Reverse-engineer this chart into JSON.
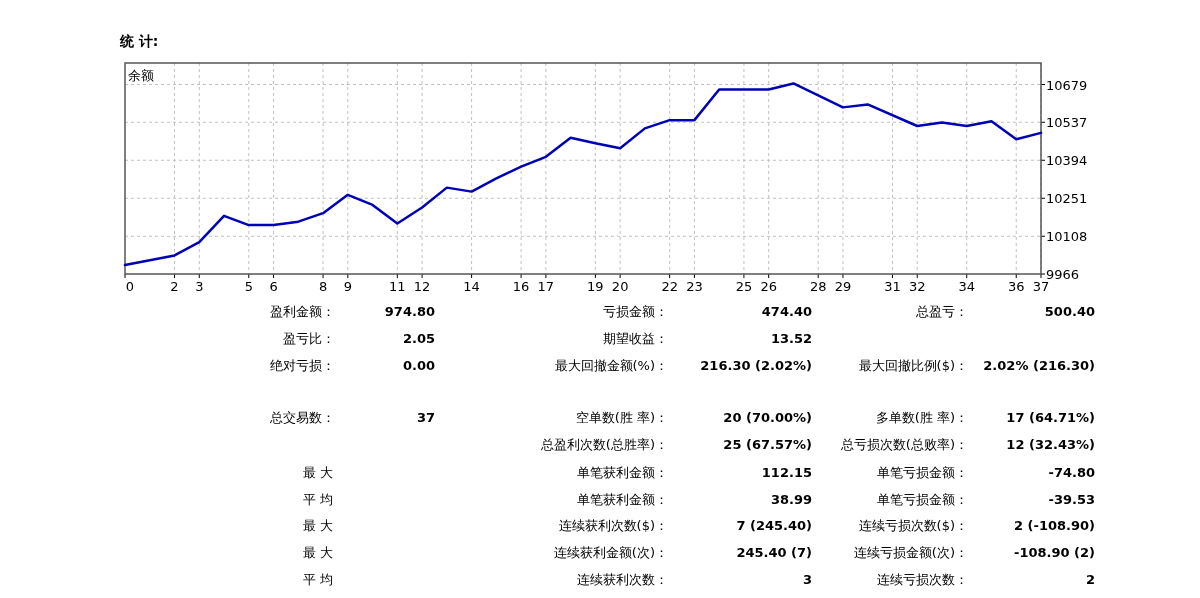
{
  "chart_data": [
    {
      "type": "line",
      "title": "统 计:",
      "annotations": [
        "余额"
      ],
      "x": [
        0,
        2,
        3,
        4,
        5,
        6,
        7,
        8,
        9,
        10,
        11,
        12,
        13,
        14,
        15,
        16,
        17,
        18,
        19,
        20,
        21,
        22,
        23,
        24,
        26,
        27,
        29,
        30,
        32,
        33,
        34,
        35,
        36,
        37
      ],
      "series": [
        {
          "color": "#0000b4",
          "values": [
            10000,
            10036,
            10086,
            10185,
            10150,
            10150,
            10163,
            10195,
            10264,
            10226,
            10156,
            10216,
            10291,
            10276,
            10326,
            10370,
            10407,
            10479,
            10458,
            10439,
            10514,
            10545,
            10545,
            10660,
            10660,
            10683,
            10593,
            10604,
            10523,
            10536,
            10523,
            10541,
            10473,
            10497
          ]
        }
      ],
      "xlim": [
        0,
        37
      ],
      "xticks": [
        0,
        2,
        3,
        5,
        6,
        8,
        9,
        11,
        12,
        14,
        16,
        17,
        19,
        20,
        22,
        23,
        25,
        26,
        28,
        29,
        31,
        32,
        34,
        36,
        37
      ],
      "ylim": [
        9966,
        10760
      ],
      "yticks": [
        9966,
        10108,
        10251,
        10394,
        10537,
        10679
      ],
      "grid": true,
      "marker": "none",
      "line_style": "solid"
    },
    {
      "type": "other",
      "annotations": [
        "盈利金额：",
        "974.80",
        "亏损金额：",
        "474.40",
        "总盈亏：",
        "500.40",
        "盈亏比：",
        "2.05",
        "期望收益：",
        "13.52",
        "绝对亏损：",
        "0.00",
        "最大回撤金额(%)：",
        "216.30 (2.02%)",
        "最大回撤比例($)：",
        "2.02% (216.30)",
        "总交易数：",
        "37",
        "空单数(胜 率)：",
        "20 (70.00%)",
        "多单数(胜 率)：",
        "17 (64.71%)",
        "总盈利次数(总胜率)：",
        "25 (67.57%)",
        "总亏损次数(总败率)：",
        "12 (32.43%)",
        "最 大",
        "单笔获利金额：",
        "112.15",
        "单笔亏损金额：",
        "-74.80",
        "平 均",
        "单笔获利金额：",
        "38.99",
        "单笔亏损金额：",
        "-39.53",
        "最 大",
        "连续获利次数($)：",
        "7 (245.40)",
        "连续亏损次数($)：",
        "2 (-108.90)",
        "最 大",
        "连续获利金额(次)：",
        "245.40 (7)",
        "连续亏损金额(次)：",
        "-108.90 (2)",
        "平 均",
        "连续获利次数：",
        "3",
        "连续亏损次数：",
        "2"
      ]
    }
  ]
}
